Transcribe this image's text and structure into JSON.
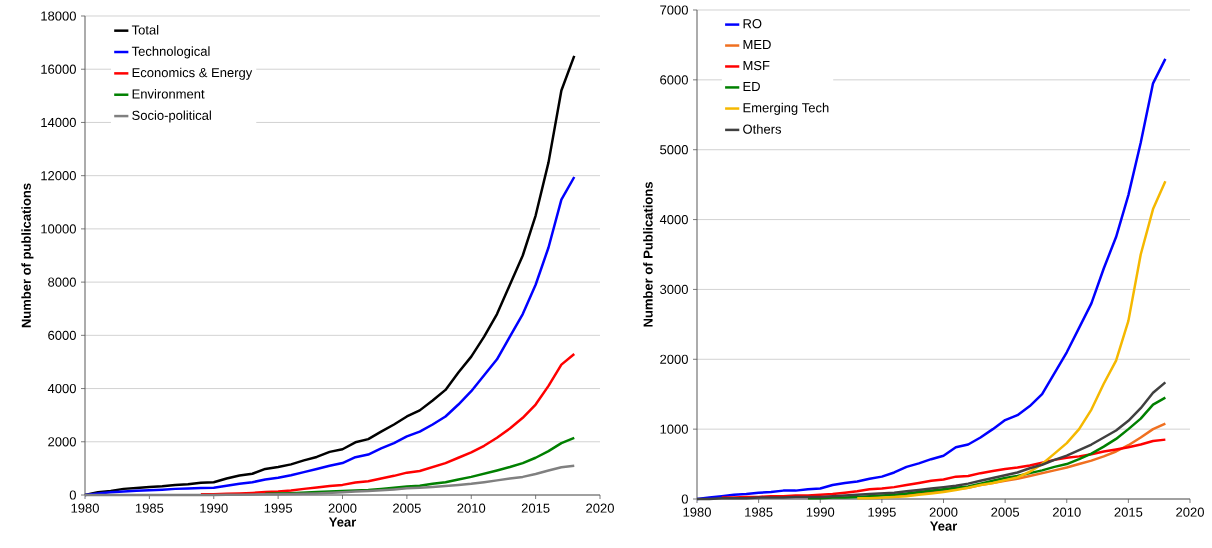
{
  "chart_data": [
    {
      "type": "line",
      "xlabel": "Year",
      "ylabel": "Number of publications",
      "xlim": [
        1980,
        2020
      ],
      "ylim": [
        0,
        18000
      ],
      "xticks": [
        1980,
        1985,
        1990,
        1995,
        2000,
        2005,
        2010,
        2015,
        2020
      ],
      "yticks": [
        0,
        2000,
        4000,
        6000,
        8000,
        10000,
        12000,
        14000,
        16000,
        18000
      ],
      "grid": "y",
      "legend": "top left",
      "line_style": "solid",
      "x": [
        1980,
        1981,
        1982,
        1983,
        1984,
        1985,
        1986,
        1987,
        1988,
        1989,
        1990,
        1991,
        1992,
        1993,
        1994,
        1995,
        1996,
        1997,
        1998,
        1999,
        2000,
        2001,
        2002,
        2003,
        2004,
        2005,
        2006,
        2007,
        2008,
        2009,
        2010,
        2011,
        2012,
        2013,
        2014,
        2015,
        2016,
        2017,
        2018
      ],
      "series": [
        {
          "name": "Total",
          "color": "#000000",
          "values": [
            0,
            100,
            150,
            230,
            260,
            300,
            330,
            380,
            400,
            460,
            480,
            620,
            730,
            800,
            980,
            1050,
            1150,
            1300,
            1430,
            1620,
            1720,
            1980,
            2100,
            2380,
            2650,
            2950,
            3180,
            3550,
            3950,
            4600,
            5200,
            5950,
            6800,
            7900,
            9000,
            10500,
            12500,
            15200,
            16500
          ]
        },
        {
          "name": "Technological",
          "color": "#0000ff",
          "values": [
            0,
            60,
            100,
            130,
            160,
            180,
            200,
            230,
            240,
            260,
            270,
            350,
            420,
            480,
            580,
            650,
            740,
            860,
            980,
            1100,
            1200,
            1420,
            1520,
            1750,
            1950,
            2200,
            2380,
            2650,
            2950,
            3400,
            3900,
            4500,
            5100,
            5950,
            6800,
            7900,
            9300,
            11100,
            11950
          ]
        },
        {
          "name": "Economics & Energy",
          "color": "#ff0000",
          "values": [
            null,
            null,
            null,
            null,
            null,
            null,
            null,
            null,
            null,
            30,
            30,
            50,
            60,
            80,
            110,
            130,
            170,
            230,
            280,
            340,
            380,
            470,
            520,
            620,
            720,
            840,
            900,
            1050,
            1200,
            1400,
            1600,
            1850,
            2150,
            2500,
            2900,
            3400,
            4100,
            4900,
            5300
          ]
        },
        {
          "name": "Environment",
          "color": "#008000",
          "values": [
            null,
            null,
            null,
            null,
            null,
            null,
            null,
            null,
            null,
            null,
            null,
            null,
            null,
            null,
            50,
            60,
            70,
            90,
            110,
            130,
            150,
            170,
            190,
            230,
            270,
            320,
            350,
            420,
            480,
            580,
            680,
            800,
            920,
            1050,
            1200,
            1400,
            1650,
            1950,
            2150
          ]
        },
        {
          "name": "Socio-political",
          "color": "#808080",
          "values": [
            0,
            0,
            0,
            0,
            0,
            0,
            0,
            0,
            0,
            0,
            0,
            10,
            10,
            20,
            30,
            30,
            40,
            50,
            60,
            80,
            100,
            130,
            150,
            180,
            210,
            250,
            270,
            300,
            340,
            380,
            420,
            480,
            550,
            620,
            680,
            790,
            920,
            1040,
            1100
          ]
        }
      ]
    },
    {
      "type": "line",
      "xlabel": "Year",
      "ylabel": "Number of Publications",
      "xlim": [
        1980,
        2020
      ],
      "ylim": [
        0,
        7000
      ],
      "xticks": [
        1980,
        1985,
        1990,
        1995,
        2000,
        2005,
        2010,
        2015,
        2020
      ],
      "yticks": [
        0,
        1000,
        2000,
        3000,
        4000,
        5000,
        6000,
        7000
      ],
      "grid": "y",
      "legend": "top left",
      "line_style": "solid",
      "x": [
        1980,
        1981,
        1982,
        1983,
        1984,
        1985,
        1986,
        1987,
        1988,
        1989,
        1990,
        1991,
        1992,
        1993,
        1994,
        1995,
        1996,
        1997,
        1998,
        1999,
        2000,
        2001,
        2002,
        2003,
        2004,
        2005,
        2006,
        2007,
        2008,
        2009,
        2010,
        2011,
        2012,
        2013,
        2014,
        2015,
        2016,
        2017,
        2018
      ],
      "series": [
        {
          "name": "RO",
          "color": "#0000ff",
          "values": [
            0,
            20,
            40,
            60,
            70,
            90,
            100,
            120,
            120,
            140,
            150,
            200,
            230,
            250,
            290,
            320,
            380,
            460,
            510,
            570,
            620,
            740,
            780,
            880,
            1000,
            1130,
            1200,
            1330,
            1500,
            1800,
            2100,
            2450,
            2800,
            3300,
            3750,
            4350,
            5100,
            5950,
            6300
          ]
        },
        {
          "name": "MED",
          "color": "#f07020",
          "values": [
            null,
            null,
            null,
            null,
            null,
            null,
            null,
            null,
            null,
            null,
            null,
            null,
            null,
            null,
            null,
            null,
            50,
            60,
            80,
            100,
            110,
            140,
            160,
            200,
            230,
            260,
            290,
            330,
            370,
            410,
            450,
            500,
            550,
            610,
            680,
            770,
            880,
            1000,
            1080
          ]
        },
        {
          "name": "MSF",
          "color": "#ff0000",
          "values": [
            null,
            null,
            20,
            20,
            30,
            30,
            40,
            40,
            50,
            50,
            60,
            70,
            90,
            110,
            140,
            150,
            170,
            200,
            230,
            260,
            280,
            320,
            330,
            370,
            400,
            430,
            450,
            480,
            520,
            560,
            590,
            610,
            640,
            680,
            710,
            740,
            780,
            830,
            850
          ]
        },
        {
          "name": "ED",
          "color": "#008000",
          "values": [
            null,
            null,
            null,
            null,
            null,
            null,
            null,
            null,
            null,
            10,
            10,
            20,
            20,
            30,
            40,
            50,
            60,
            80,
            100,
            120,
            140,
            160,
            180,
            220,
            260,
            300,
            330,
            370,
            410,
            460,
            500,
            570,
            650,
            750,
            860,
            1000,
            1150,
            1350,
            1450
          ]
        },
        {
          "name": "Emerging Tech",
          "color": "#f5b800",
          "values": [
            null,
            null,
            null,
            null,
            null,
            null,
            null,
            null,
            null,
            null,
            null,
            null,
            null,
            10,
            10,
            20,
            30,
            40,
            60,
            80,
            100,
            130,
            160,
            200,
            230,
            270,
            310,
            390,
            500,
            650,
            800,
            1000,
            1280,
            1650,
            1980,
            2550,
            3500,
            4150,
            4550
          ]
        },
        {
          "name": "Others",
          "color": "#404040",
          "values": [
            0,
            0,
            10,
            10,
            10,
            20,
            20,
            20,
            30,
            30,
            30,
            40,
            50,
            60,
            70,
            80,
            90,
            110,
            130,
            150,
            170,
            190,
            220,
            260,
            300,
            340,
            380,
            440,
            490,
            560,
            620,
            700,
            780,
            880,
            980,
            1120,
            1300,
            1520,
            1670
          ]
        }
      ]
    }
  ]
}
